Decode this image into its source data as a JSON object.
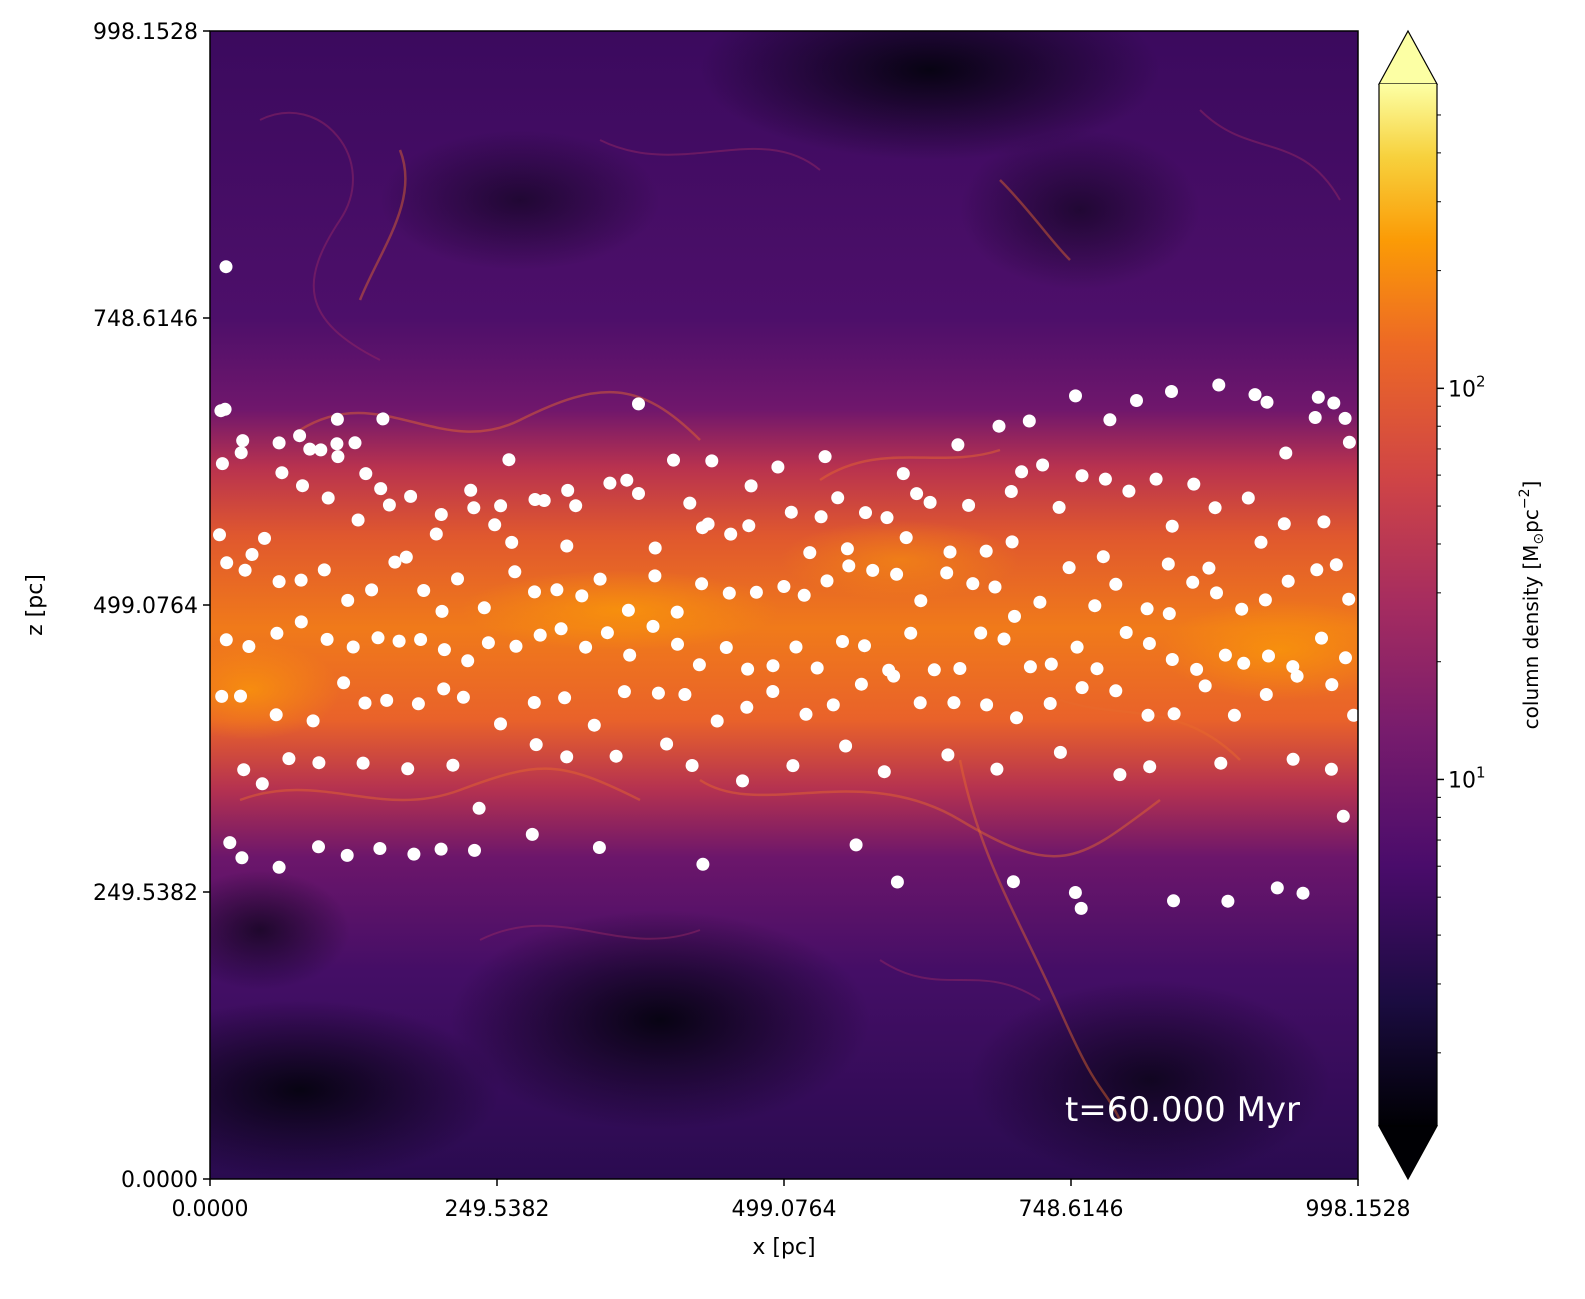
{
  "chart_data": {
    "type": "scatter",
    "background": "column-density-map",
    "colormap": "inferno",
    "xlabel": "x [pc]",
    "ylabel": "z [pc]",
    "xlim": [
      0.0,
      998.1528
    ],
    "ylim": [
      0.0,
      998.1528
    ],
    "xticks": [
      "0.0000",
      "249.5382",
      "499.0764",
      "748.6146",
      "998.1528"
    ],
    "yticks": [
      "0.0000",
      "249.5382",
      "499.0764",
      "748.6146",
      "998.1528"
    ],
    "annotation": "t=60.000 Myr",
    "colorbar": {
      "label": "column density [M",
      "label_sub": "⊙",
      "label_tail": "pc",
      "label_sup": "−2",
      "label_close": "]",
      "scale": "log",
      "range": [
        1.3,
        600
      ],
      "tick_base": "10",
      "ticks": [
        {
          "value": 10,
          "exp": "1"
        },
        {
          "value": 100,
          "exp": "2"
        }
      ],
      "extend": "both"
    },
    "stars_color": "#ffffff",
    "stars": [
      [
        13.9,
        793.2
      ],
      [
        9.5,
        668.0
      ],
      [
        10.8,
        622.0
      ],
      [
        27.1,
        631.5
      ],
      [
        60.1,
        640.0
      ],
      [
        86.8,
        634.6
      ],
      [
        96.3,
        633.9
      ],
      [
        110.3,
        639.2
      ],
      [
        111.2,
        628.1
      ],
      [
        62.5,
        614.1
      ],
      [
        80.4,
        602.8
      ],
      [
        102.8,
        592.1
      ],
      [
        126.1,
        640.1
      ],
      [
        135.5,
        613.3
      ],
      [
        148.4,
        600.3
      ],
      [
        156.0,
        586.0
      ],
      [
        174.4,
        593.5
      ],
      [
        201.1,
        577.8
      ],
      [
        226.7,
        598.8
      ],
      [
        229.4,
        583.6
      ],
      [
        247.5,
        568.8
      ],
      [
        262.3,
        553.5
      ],
      [
        282.6,
        590.8
      ],
      [
        311.0,
        598.7
      ],
      [
        310.2,
        550.4
      ],
      [
        318.0,
        585.4
      ],
      [
        347.7,
        605.1
      ],
      [
        362.4,
        607.6
      ],
      [
        372.6,
        596.0
      ],
      [
        417.2,
        587.7
      ],
      [
        428.2,
        566.3
      ],
      [
        452.7,
        560.7
      ],
      [
        468.5,
        568.0
      ],
      [
        505.4,
        579.8
      ],
      [
        521.5,
        544.6
      ],
      [
        531.3,
        575.8
      ],
      [
        554.2,
        547.9
      ],
      [
        569.9,
        579.4
      ],
      [
        588.6,
        575.1
      ],
      [
        602.8,
        613.3
      ],
      [
        614.4,
        595.9
      ],
      [
        626.1,
        588.3
      ],
      [
        659.6,
        585.7
      ],
      [
        674.9,
        545.9
      ],
      [
        696.7,
        597.8
      ],
      [
        705.7,
        614.9
      ],
      [
        723.9,
        620.8
      ],
      [
        738.3,
        583.9
      ],
      [
        758.2,
        611.5
      ],
      [
        778.5,
        608.5
      ],
      [
        799.0,
        598.1
      ],
      [
        822.6,
        608.5
      ],
      [
        836.6,
        567.6
      ],
      [
        855.4,
        604.2
      ],
      [
        873.9,
        583.7
      ],
      [
        902.8,
        592.1
      ],
      [
        919.0,
        675.4
      ],
      [
        935.4,
        631.2
      ],
      [
        960.9,
        662.1
      ],
      [
        986.9,
        661.3
      ],
      [
        8.3,
        560.1
      ],
      [
        14.5,
        535.8
      ],
      [
        36.5,
        543.0
      ],
      [
        60.1,
        519.4
      ],
      [
        79.2,
        520.7
      ],
      [
        99.4,
        529.6
      ],
      [
        119.7,
        503.1
      ],
      [
        140.5,
        512.2
      ],
      [
        160.8,
        536.4
      ],
      [
        185.8,
        511.7
      ],
      [
        201.7,
        493.5
      ],
      [
        215.2,
        521.8
      ],
      [
        238.5,
        496.6
      ],
      [
        265.0,
        527.9
      ],
      [
        282.1,
        510.5
      ],
      [
        301.6,
        512.3
      ],
      [
        323.3,
        507.0
      ],
      [
        339.2,
        521.6
      ],
      [
        363.8,
        494.5
      ],
      [
        386.8,
        524.4
      ],
      [
        406.2,
        492.9
      ],
      [
        427.4,
        517.5
      ],
      [
        451.5,
        509.4
      ],
      [
        475.1,
        510.1
      ],
      [
        499.0,
        515.2
      ],
      [
        516.6,
        507.5
      ],
      [
        536.5,
        520.0
      ],
      [
        555.4,
        533.1
      ],
      [
        576.2,
        529.2
      ],
      [
        597.0,
        525.8
      ],
      [
        618.0,
        502.8
      ],
      [
        640.5,
        527.0
      ],
      [
        663.2,
        517.7
      ],
      [
        682.5,
        514.7
      ],
      [
        699.5,
        489.2
      ],
      [
        721.6,
        501.5
      ],
      [
        747.0,
        531.6
      ],
      [
        769.3,
        498.5
      ],
      [
        787.6,
        517.1
      ],
      [
        814.8,
        495.8
      ],
      [
        834.1,
        491.6
      ],
      [
        854.4,
        518.8
      ],
      [
        875.1,
        509.6
      ],
      [
        897.0,
        495.4
      ],
      [
        917.6,
        503.5
      ],
      [
        937.5,
        519.8
      ],
      [
        962.3,
        529.7
      ],
      [
        979.3,
        534.1
      ],
      [
        990.1,
        504.1
      ],
      [
        14.2,
        468.8
      ],
      [
        33.8,
        463.0
      ],
      [
        58.2,
        474.5
      ],
      [
        79.4,
        484.4
      ],
      [
        101.8,
        469.2
      ],
      [
        124.5,
        462.6
      ],
      [
        146.1,
        470.6
      ],
      [
        164.4,
        467.7
      ],
      [
        183.1,
        469.1
      ],
      [
        203.8,
        460.3
      ],
      [
        224.1,
        450.6
      ],
      [
        242.1,
        466.3
      ],
      [
        266.1,
        463.2
      ],
      [
        287.1,
        472.9
      ],
      [
        305.3,
        478.4
      ],
      [
        326.6,
        462.4
      ],
      [
        345.5,
        475.0
      ],
      [
        364.9,
        455.5
      ],
      [
        385.2,
        480.5
      ],
      [
        406.5,
        464.9
      ],
      [
        425.5,
        447.1
      ],
      [
        448.9,
        462.1
      ],
      [
        467.4,
        443.3
      ],
      [
        489.5,
        446.3
      ],
      [
        509.5,
        462.6
      ],
      [
        527.9,
        444.3
      ],
      [
        549.9,
        467.3
      ],
      [
        569.1,
        463.7
      ],
      [
        590.1,
        442.4
      ],
      [
        609.2,
        474.6
      ],
      [
        629.8,
        442.7
      ],
      [
        652.0,
        443.9
      ],
      [
        670.1,
        474.7
      ],
      [
        690.4,
        469.5
      ],
      [
        713.3,
        445.3
      ],
      [
        731.5,
        447.7
      ],
      [
        753.9,
        462.5
      ],
      [
        771.2,
        443.7
      ],
      [
        796.6,
        475.2
      ],
      [
        816.8,
        465.6
      ],
      [
        836.7,
        451.7
      ],
      [
        857.8,
        443.1
      ],
      [
        882.9,
        455.5
      ],
      [
        898.8,
        448.4
      ],
      [
        920.3,
        454.7
      ],
      [
        941.5,
        445.5
      ],
      [
        966.4,
        470.3
      ],
      [
        987.3,
        453.2
      ],
      [
        10.2,
        419.6
      ],
      [
        26.5,
        419.9
      ],
      [
        57.6,
        403.6
      ],
      [
        89.6,
        398.3
      ],
      [
        116.2,
        431.4
      ],
      [
        134.8,
        413.9
      ],
      [
        153.6,
        416.1
      ],
      [
        181.2,
        413.2
      ],
      [
        203.2,
        426.1
      ],
      [
        220.3,
        418.8
      ],
      [
        252.6,
        395.7
      ],
      [
        282.0,
        414.3
      ],
      [
        308.3,
        418.4
      ],
      [
        334.1,
        394.6
      ],
      [
        360.3,
        423.8
      ],
      [
        389.9,
        422.5
      ],
      [
        412.9,
        421.3
      ],
      [
        441.0,
        398.2
      ],
      [
        466.7,
        410.1
      ],
      [
        489.3,
        423.9
      ],
      [
        518.2,
        404.0
      ],
      [
        541.9,
        412.2
      ],
      [
        566.4,
        430.2
      ],
      [
        594.4,
        437.3
      ],
      [
        617.5,
        414.0
      ],
      [
        646.8,
        414.2
      ],
      [
        675.2,
        412.2
      ],
      [
        701.2,
        401.0
      ],
      [
        730.5,
        413.4
      ],
      [
        758.3,
        427.3
      ],
      [
        787.6,
        424.5
      ],
      [
        815.6,
        403.2
      ],
      [
        838.3,
        404.5
      ],
      [
        865.3,
        428.7
      ],
      [
        890.7,
        403.2
      ],
      [
        918.4,
        421.3
      ],
      [
        945.2,
        437.2
      ],
      [
        975.4,
        429.9
      ],
      [
        994.3,
        403.2
      ],
      [
        29.3,
        355.9
      ],
      [
        45.5,
        343.6
      ],
      [
        68.6,
        365.5
      ],
      [
        94.7,
        362.0
      ],
      [
        133.1,
        361.6
      ],
      [
        171.9,
        356.7
      ],
      [
        211.2,
        359.8
      ],
      [
        234.0,
        322.3
      ],
      [
        283.6,
        377.7
      ],
      [
        310.1,
        367.0
      ],
      [
        353.1,
        367.6
      ],
      [
        397.0,
        378.2
      ],
      [
        419.2,
        359.5
      ],
      [
        463.0,
        346.1
      ],
      [
        506.8,
        359.4
      ],
      [
        552.6,
        376.5
      ],
      [
        586.3,
        354.1
      ],
      [
        641.6,
        368.7
      ],
      [
        684.2,
        356.4
      ],
      [
        739.4,
        370.9
      ],
      [
        791.1,
        351.6
      ],
      [
        817.0,
        358.5
      ],
      [
        878.9,
        361.5
      ],
      [
        941.7,
        364.9
      ],
      [
        975.0,
        356.2
      ],
      [
        985.4,
        315.4
      ],
      [
        17.2,
        292.5
      ],
      [
        27.7,
        279.3
      ],
      [
        60.1,
        271.0
      ],
      [
        94.3,
        288.8
      ],
      [
        119.3,
        281.4
      ],
      [
        147.7,
        287.4
      ],
      [
        177.3,
        282.5
      ],
      [
        200.9,
        286.8
      ],
      [
        230.0,
        285.7
      ],
      [
        280.2,
        299.6
      ],
      [
        338.6,
        288.2
      ],
      [
        428.6,
        273.6
      ],
      [
        561.8,
        290.5
      ],
      [
        597.7,
        258.2
      ],
      [
        698.5,
        258.5
      ],
      [
        752.4,
        249.1
      ],
      [
        757.5,
        235.3
      ],
      [
        837.7,
        241.9
      ],
      [
        885.0,
        241.5
      ],
      [
        928.0,
        253.1
      ],
      [
        950.3,
        248.5
      ],
      [
        13.1,
        669.2
      ],
      [
        28.4,
        642.0
      ],
      [
        77.9,
        646.3
      ],
      [
        110.8,
        660.5
      ],
      [
        150.3,
        660.9
      ],
      [
        259.9,
        625.4
      ],
      [
        372.6,
        673.9
      ],
      [
        403.0,
        625.1
      ],
      [
        436.3,
        624.4
      ],
      [
        493.8,
        619.1
      ],
      [
        534.8,
        628.1
      ],
      [
        650.3,
        638.4
      ],
      [
        686.0,
        654.5
      ],
      [
        712.4,
        659.1
      ],
      [
        752.5,
        680.9
      ],
      [
        782.4,
        660.1
      ],
      [
        805.6,
        676.9
      ],
      [
        836.0,
        684.7
      ],
      [
        877.1,
        690.4
      ],
      [
        908.6,
        682.0
      ],
      [
        963.6,
        679.7
      ],
      [
        977.1,
        674.7
      ],
      [
        990.7,
        640.5
      ],
      [
        30.5,
        529.3
      ],
      [
        47.4,
        557.0
      ],
      [
        128.8,
        573.0
      ],
      [
        170.7,
        540.7
      ],
      [
        196.8,
        560.8
      ],
      [
        252.7,
        585.3
      ],
      [
        290.6,
        589.9
      ],
      [
        387.1,
        548.6
      ],
      [
        433.1,
        569.5
      ],
      [
        470.5,
        602.6
      ],
      [
        545.8,
        592.3
      ],
      [
        605.3,
        557.7
      ],
      [
        643.4,
        545.2
      ],
      [
        697.4,
        553.9
      ],
      [
        776.7,
        541.1
      ],
      [
        833.2,
        534.7
      ],
      [
        868.5,
        531.2
      ],
      [
        913.8,
        553.6
      ],
      [
        934.1,
        569.7
      ],
      [
        968.5,
        571.3
      ]
    ]
  }
}
